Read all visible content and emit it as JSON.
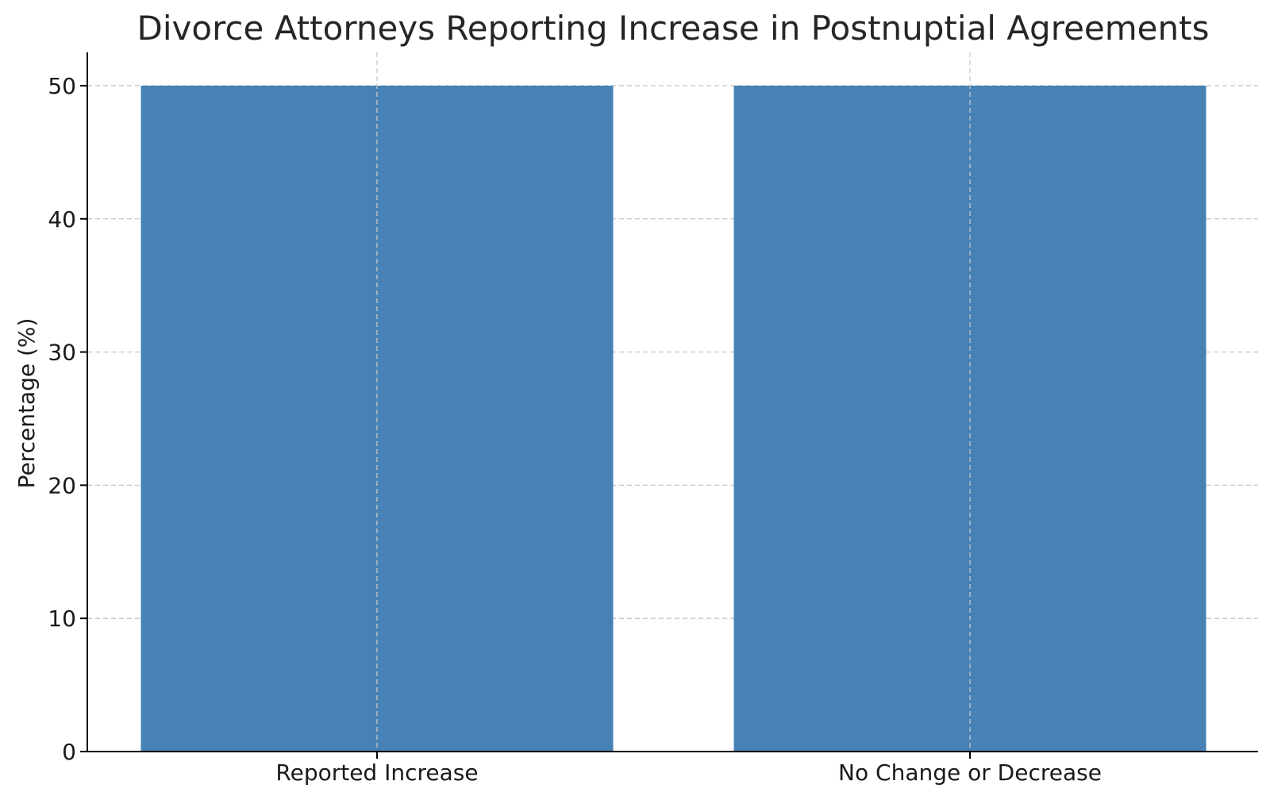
{
  "chart_data": {
    "type": "bar",
    "title": "Divorce Attorneys Reporting Increase in Postnuptial Agreements",
    "xlabel": "",
    "ylabel": "Percentage (%)",
    "categories": [
      "Reported Increase",
      "No Change or Decrease"
    ],
    "values": [
      50,
      50
    ],
    "ylim": [
      0,
      52.5
    ],
    "yticks": [
      0,
      10,
      20,
      30,
      40,
      50
    ],
    "grid": true,
    "bar_color": "#4682b4"
  }
}
